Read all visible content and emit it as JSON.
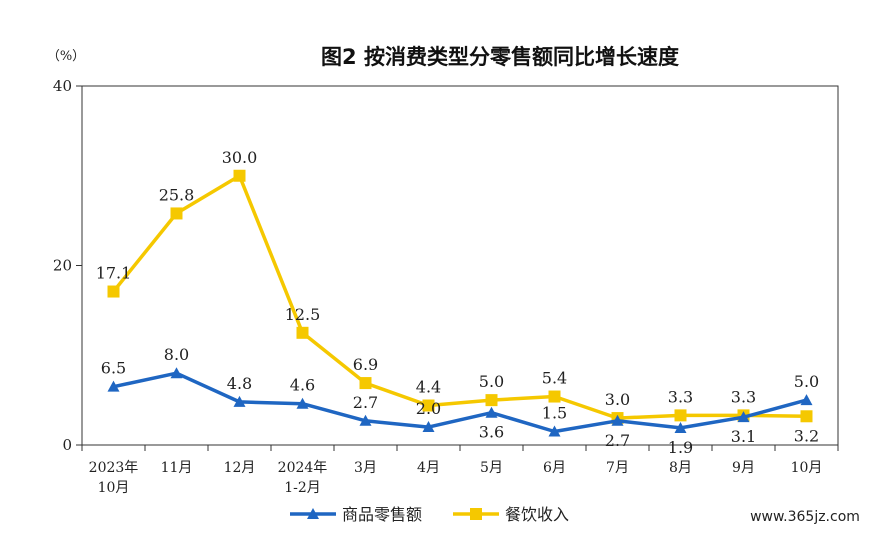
{
  "chart_data": {
    "type": "line",
    "title": "图2  按消费类型分零售额同比增长速度",
    "unit_label": "（%）",
    "ylim": [
      0,
      40
    ],
    "y_ticks": [
      "0",
      "20",
      "40"
    ],
    "grid": false,
    "legend_position": "bottom-center",
    "categories": [
      [
        "2023年",
        "10月"
      ],
      [
        "11月"
      ],
      [
        "12月"
      ],
      [
        "2024年",
        "1-2月"
      ],
      [
        "3月"
      ],
      [
        "4月"
      ],
      [
        "5月"
      ],
      [
        "6月"
      ],
      [
        "7月"
      ],
      [
        "8月"
      ],
      [
        "9月"
      ],
      [
        "10月"
      ]
    ],
    "series": [
      {
        "name": "商品零售额",
        "color": "#1f66c2",
        "marker": "triangle",
        "values": [
          6.5,
          8.0,
          4.8,
          4.6,
          2.7,
          2.0,
          3.6,
          1.5,
          2.7,
          1.9,
          3.1,
          5.0
        ],
        "labels": [
          "6.5",
          "8.0",
          "4.8",
          "4.6",
          "2.7",
          "2.0",
          "3.6",
          "1.5",
          "2.7",
          "1.9",
          "3.1",
          "5.0"
        ],
        "label_side": [
          "above",
          "above",
          "above",
          "above",
          "above",
          "above",
          "below",
          "above",
          "below",
          "below",
          "below",
          "above"
        ]
      },
      {
        "name": "餐饮收入",
        "color": "#f5c800",
        "marker": "square",
        "values": [
          17.1,
          25.8,
          30.0,
          12.5,
          6.9,
          4.4,
          5.0,
          5.4,
          3.0,
          3.3,
          3.3,
          3.2
        ],
        "labels": [
          "17.1",
          "25.8",
          "30.0",
          "12.5",
          "6.9",
          "4.4",
          "5.0",
          "5.4",
          "3.0",
          "3.3",
          "3.3",
          "3.2"
        ],
        "label_side": [
          "above",
          "above",
          "above",
          "above",
          "above",
          "above",
          "above",
          "above",
          "above",
          "above",
          "above",
          "below"
        ]
      }
    ]
  },
  "watermark": "www.365jz.com"
}
